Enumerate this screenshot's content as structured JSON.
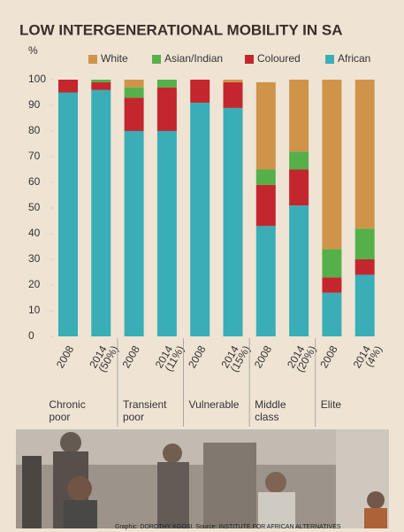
{
  "chart_data": {
    "type": "stacked_bar",
    "title": "LOW INTERGENERATIONAL MOBILITY IN SA",
    "y_label": "%",
    "categories": [
      "2008",
      "2014",
      "2008",
      "2014",
      "2008",
      "2014",
      "2008",
      "2014",
      "2008",
      "2014"
    ],
    "category_notes": [
      null,
      "(50%)",
      null,
      "(11%)",
      null,
      "(15%)",
      null,
      "(20%)",
      null,
      "(4%)"
    ],
    "groups": [
      "Chronic poor",
      "Transient poor",
      "Vulnerable",
      "Middle class",
      "Elite"
    ],
    "series": [
      {
        "name": "White",
        "color": "#cf9449",
        "values": [
          0,
          0,
          3,
          0,
          0,
          1,
          34,
          28,
          66,
          58
        ]
      },
      {
        "name": "Asian/Indian",
        "color": "#55b04a",
        "values": [
          0,
          1,
          4,
          3,
          0,
          0,
          6,
          7,
          11,
          12
        ]
      },
      {
        "name": "Coloured",
        "color": "#c4262e",
        "values": [
          5,
          3,
          13,
          17,
          9,
          10,
          16,
          14,
          6,
          6
        ]
      },
      {
        "name": "African",
        "color": "#39aeb6",
        "values": [
          95,
          96,
          80,
          80,
          91,
          89,
          43,
          51,
          17,
          24
        ]
      }
    ],
    "ylim": [
      0,
      100
    ],
    "yticks": [
      0,
      10,
      20,
      30,
      40,
      50,
      60,
      70,
      80,
      90,
      100
    ],
    "grid": false,
    "credit": "Graphic: DOROTHY KGOSI. Source: INSTITUTE FOR AFRICAN ALTERNATIVES"
  }
}
